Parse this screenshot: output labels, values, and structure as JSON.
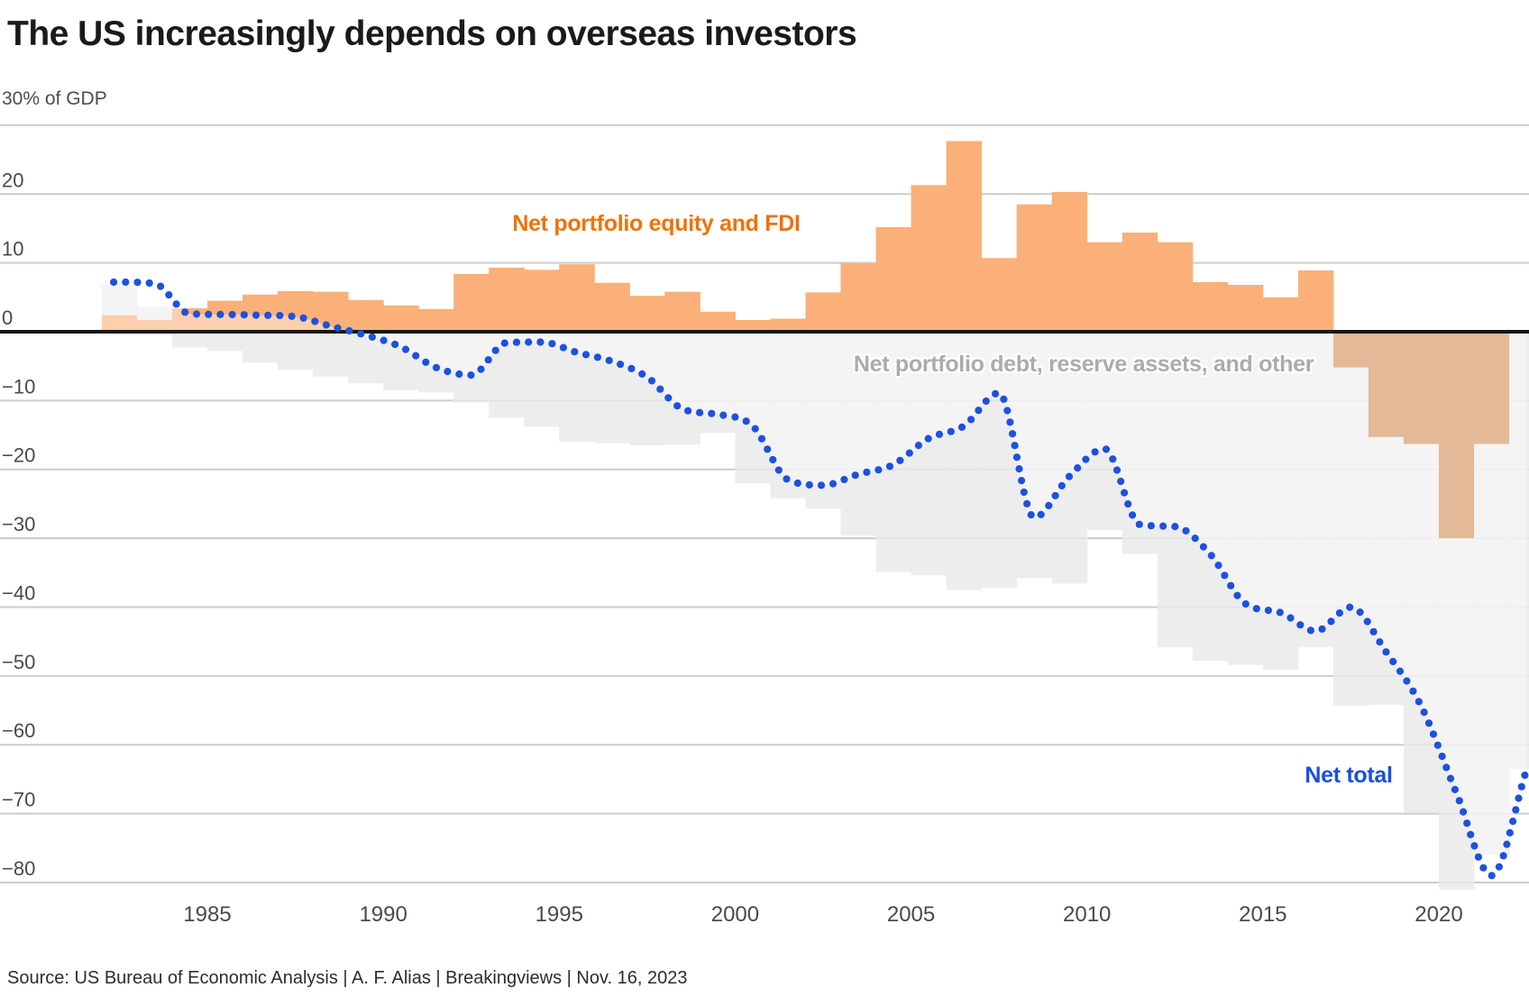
{
  "title": "The US increasingly depends on overseas investors",
  "y_axis_top_label": "30% of GDP",
  "source_line": "Source: US Bureau of Economic Analysis | A. F. Alias | Breakingviews | Nov. 16, 2023",
  "chart_data": {
    "type": "bar",
    "subtype": "diverging-stacked-columns-with-dotted-line",
    "title": "The US increasingly depends on overseas investors",
    "ylabel": "30% of GDP",
    "xlabel": "",
    "grid": "horizontal",
    "legend_position": "inline-annotations",
    "ylim": [
      -84,
      32
    ],
    "x": [
      1982,
      1983,
      1984,
      1985,
      1986,
      1987,
      1988,
      1989,
      1990,
      1991,
      1992,
      1993,
      1994,
      1995,
      1996,
      1997,
      1998,
      1999,
      2000,
      2001,
      2002,
      2003,
      2004,
      2005,
      2006,
      2007,
      2008,
      2009,
      2010,
      2011,
      2012,
      2013,
      2014,
      2015,
      2016,
      2017,
      2018,
      2019,
      2020,
      2021,
      2022
    ],
    "xticks": [
      1985,
      1990,
      1995,
      2000,
      2005,
      2010,
      2015,
      2020
    ],
    "yticks": [
      30,
      20,
      10,
      0,
      -10,
      -20,
      -30,
      -40,
      -50,
      -60,
      -70,
      -80
    ],
    "ytick_labels": [
      "",
      "20",
      "10",
      "0",
      "−10",
      "−20",
      "−30",
      "−40",
      "−50",
      "−60",
      "−70",
      "−80"
    ],
    "series": [
      {
        "name": "Net portfolio equity and FDI",
        "kind": "bar",
        "color_positive": "#fab078",
        "color_negative": "#d08a52",
        "label_color": "#ee7209",
        "values": [
          2.4,
          1.7,
          3.4,
          4.5,
          5.4,
          5.9,
          5.8,
          4.6,
          3.8,
          3.3,
          8.4,
          9.3,
          9.0,
          9.8,
          7.1,
          5.2,
          5.8,
          2.9,
          1.7,
          1.9,
          5.7,
          9.9,
          15.2,
          21.3,
          27.7,
          10.7,
          18.5,
          20.3,
          13.0,
          14.4,
          13.0,
          7.2,
          6.8,
          5.0,
          8.9,
          -5.2,
          -15.3,
          -16.3,
          -30.0,
          -16.3,
          0.0
        ]
      },
      {
        "name": "Net portfolio debt, reserve assets, and other",
        "kind": "bar",
        "color_positive": "#e9e9e9",
        "color_negative": "#e9e9e9",
        "label_color": "#ababab",
        "values": [
          4.6,
          1.9,
          -2.3,
          -2.8,
          -4.5,
          -5.5,
          -6.5,
          -7.5,
          -8.5,
          -8.8,
          -10.3,
          -12.5,
          -13.8,
          -16.0,
          -16.2,
          -16.5,
          -16.4,
          -14.7,
          -22.0,
          -24.2,
          -25.7,
          -29.6,
          -34.9,
          -35.4,
          -37.5,
          -37.2,
          -35.8,
          -36.6,
          -28.8,
          -32.3,
          -45.8,
          -47.8,
          -48.4,
          -49.1,
          -45.8,
          -49.1,
          -38.9,
          -53.6,
          -51.0,
          -59.7,
          -63.5
        ]
      },
      {
        "name": "Net total",
        "kind": "dotted-line",
        "color": "#1d51de",
        "values": [
          7.2,
          7.0,
          2.6,
          2.5,
          2.4,
          2.2,
          0.8,
          -0.5,
          -2.2,
          -5.2,
          -6.3,
          -1.6,
          -1.5,
          -3.0,
          -4.3,
          -6.6,
          -11.2,
          -12.0,
          -13.7,
          -21.5,
          -22.3,
          -20.7,
          -19.3,
          -15.5,
          -13.7,
          -8.9,
          -27.0,
          -21.0,
          -17.0,
          -28.0,
          -28.3,
          -32.3,
          -39.5,
          -40.8,
          -43.5,
          -40.0,
          -46.5,
          -54.4,
          -67.0,
          -79.0,
          -63.5
        ]
      }
    ],
    "colors": {
      "gridline": "#cccccc",
      "zero_line": "#161616",
      "axis_text": "#4a4a4a",
      "title_text": "#1a1a1a",
      "wash_overlay": "rgba(255,255,255,0.40)"
    }
  }
}
